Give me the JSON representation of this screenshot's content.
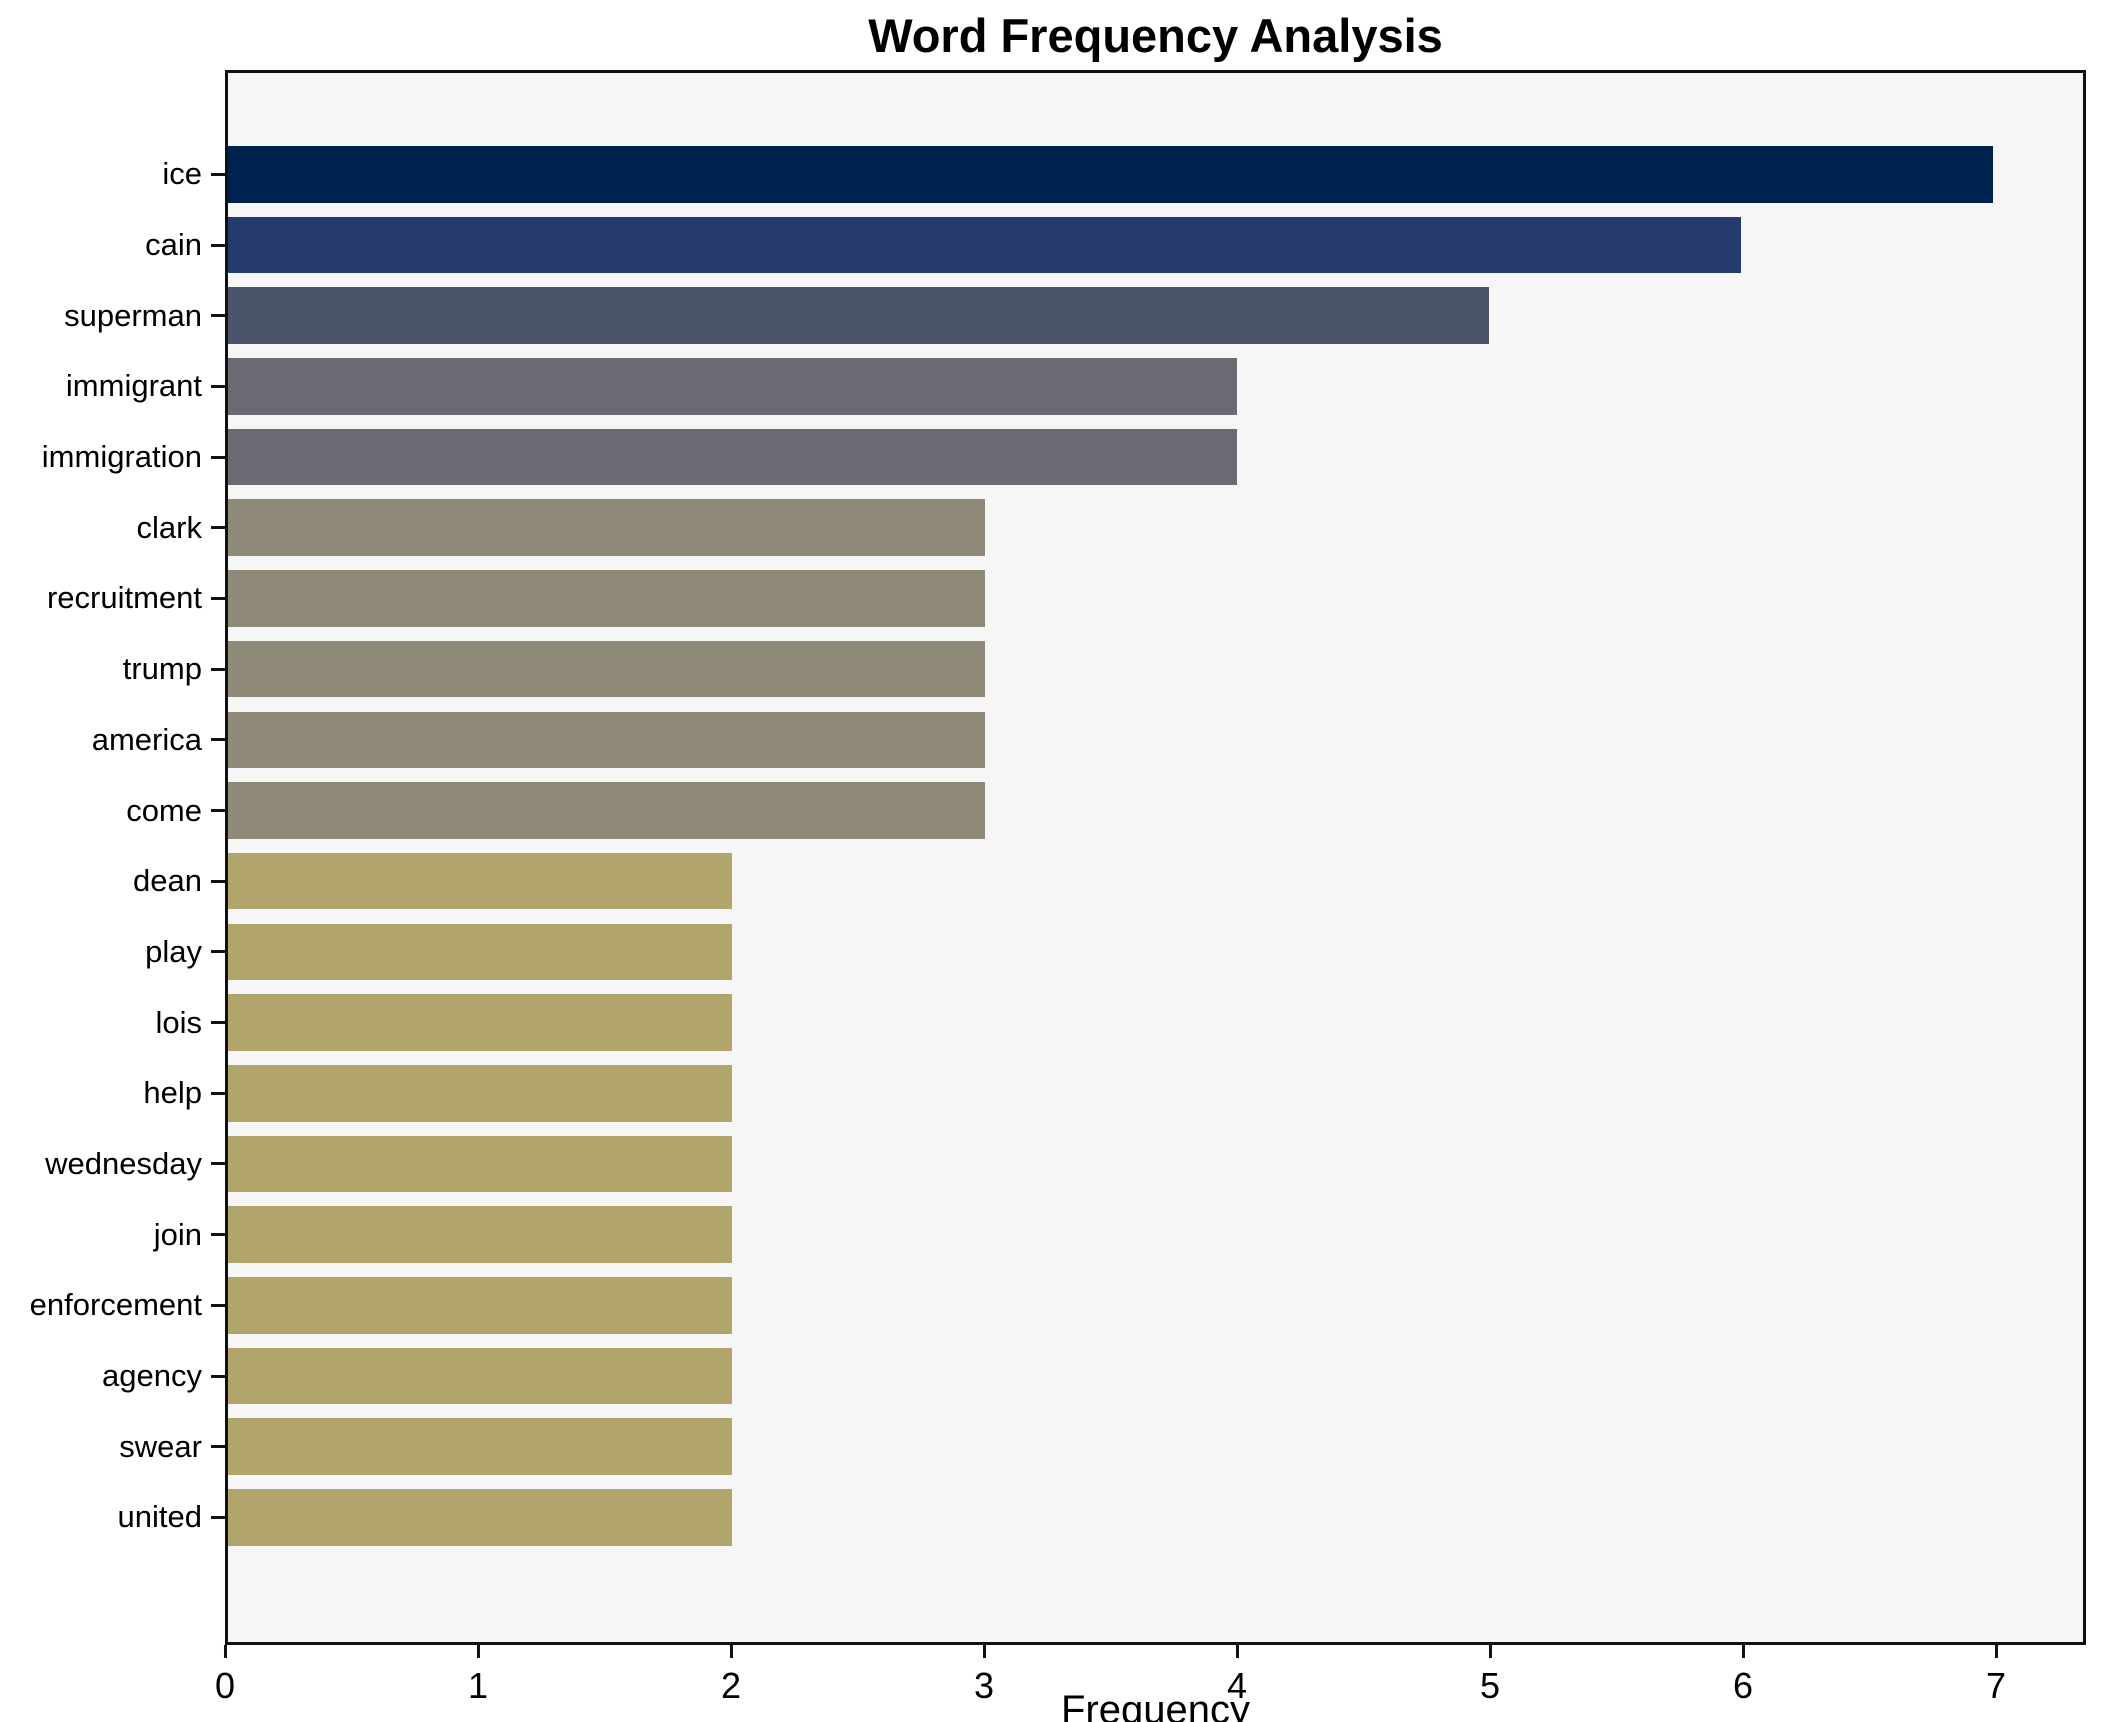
{
  "title": "Word Frequency Analysis",
  "xlabel": "Frequency",
  "colors": {
    "figure_bg": "#ffffff",
    "plot_bg": "#f6f6f7",
    "spine": "#111111",
    "text": "#000000"
  },
  "chart_data": {
    "type": "bar",
    "orientation": "horizontal",
    "title": "Word Frequency Analysis",
    "xlabel": "Frequency",
    "ylabel": "",
    "grid": false,
    "legend": false,
    "xlim": [
      0,
      7.3557
    ],
    "x_ticks": [
      0,
      1,
      2,
      3,
      4,
      5,
      6,
      7
    ],
    "categories": [
      "ice",
      "cain",
      "superman",
      "immigrant",
      "immigration",
      "clark",
      "recruitment",
      "trump",
      "america",
      "come",
      "dean",
      "play",
      "lois",
      "help",
      "wednesday",
      "join",
      "enforcement",
      "agency",
      "swear",
      "united"
    ],
    "values": [
      7,
      6,
      5,
      4,
      4,
      3,
      3,
      3,
      3,
      3,
      2,
      2,
      2,
      2,
      2,
      2,
      2,
      2,
      2,
      2
    ],
    "bar_colors": [
      "#00224e",
      "#253a6d",
      "#4c546c",
      "#6a6a72",
      "#6a6a72",
      "#8f8977",
      "#8f8977",
      "#8f8977",
      "#8f8977",
      "#8f8977",
      "#b1a56b",
      "#b1a56b",
      "#b1a56b",
      "#b1a56b",
      "#b1a56b",
      "#b1a56b",
      "#b1a56b",
      "#b1a56b",
      "#b1a56b",
      "#b1a56b"
    ]
  }
}
